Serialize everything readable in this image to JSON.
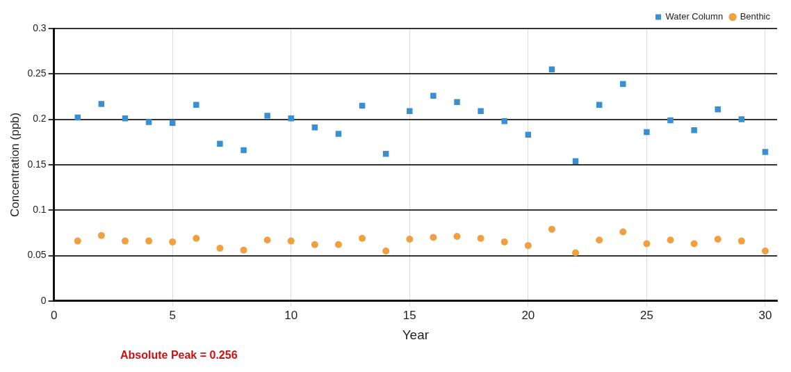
{
  "chart_data": {
    "type": "scatter",
    "xlabel": "Year",
    "ylabel": "Concentration (ppb)",
    "x": [
      1,
      2,
      3,
      4,
      5,
      6,
      7,
      8,
      9,
      10,
      11,
      12,
      13,
      14,
      15,
      16,
      17,
      18,
      19,
      20,
      21,
      22,
      23,
      24,
      25,
      26,
      27,
      28,
      29,
      30
    ],
    "series": [
      {
        "name": "Water Column",
        "color": "#3a8fd0",
        "marker": "square",
        "values": [
          0.202,
          0.217,
          0.201,
          0.197,
          0.196,
          0.216,
          0.173,
          0.166,
          0.204,
          0.201,
          0.191,
          0.184,
          0.215,
          0.162,
          0.209,
          0.226,
          0.219,
          0.209,
          0.198,
          0.183,
          0.255,
          0.154,
          0.216,
          0.239,
          0.186,
          0.199,
          0.188,
          0.211,
          0.2,
          0.164
        ]
      },
      {
        "name": "Benthic",
        "color": "#f0a040",
        "marker": "circle",
        "values": [
          0.066,
          0.072,
          0.066,
          0.066,
          0.065,
          0.069,
          0.058,
          0.056,
          0.067,
          0.066,
          0.062,
          0.062,
          0.069,
          0.055,
          0.068,
          0.07,
          0.071,
          0.069,
          0.065,
          0.061,
          0.079,
          0.053,
          0.067,
          0.076,
          0.063,
          0.067,
          0.063,
          0.068,
          0.066,
          0.055
        ]
      }
    ],
    "xlim": [
      0,
      30.5
    ],
    "xticks": [
      0,
      5,
      10,
      15,
      20,
      25,
      30
    ],
    "ylim": [
      0,
      0.3
    ],
    "yticks": [
      0,
      0.05,
      0.1,
      0.15,
      0.2,
      0.25,
      0.3
    ],
    "grid": true,
    "legend": "top right",
    "annotations": [
      "Absolute Peak = 0.256"
    ]
  }
}
